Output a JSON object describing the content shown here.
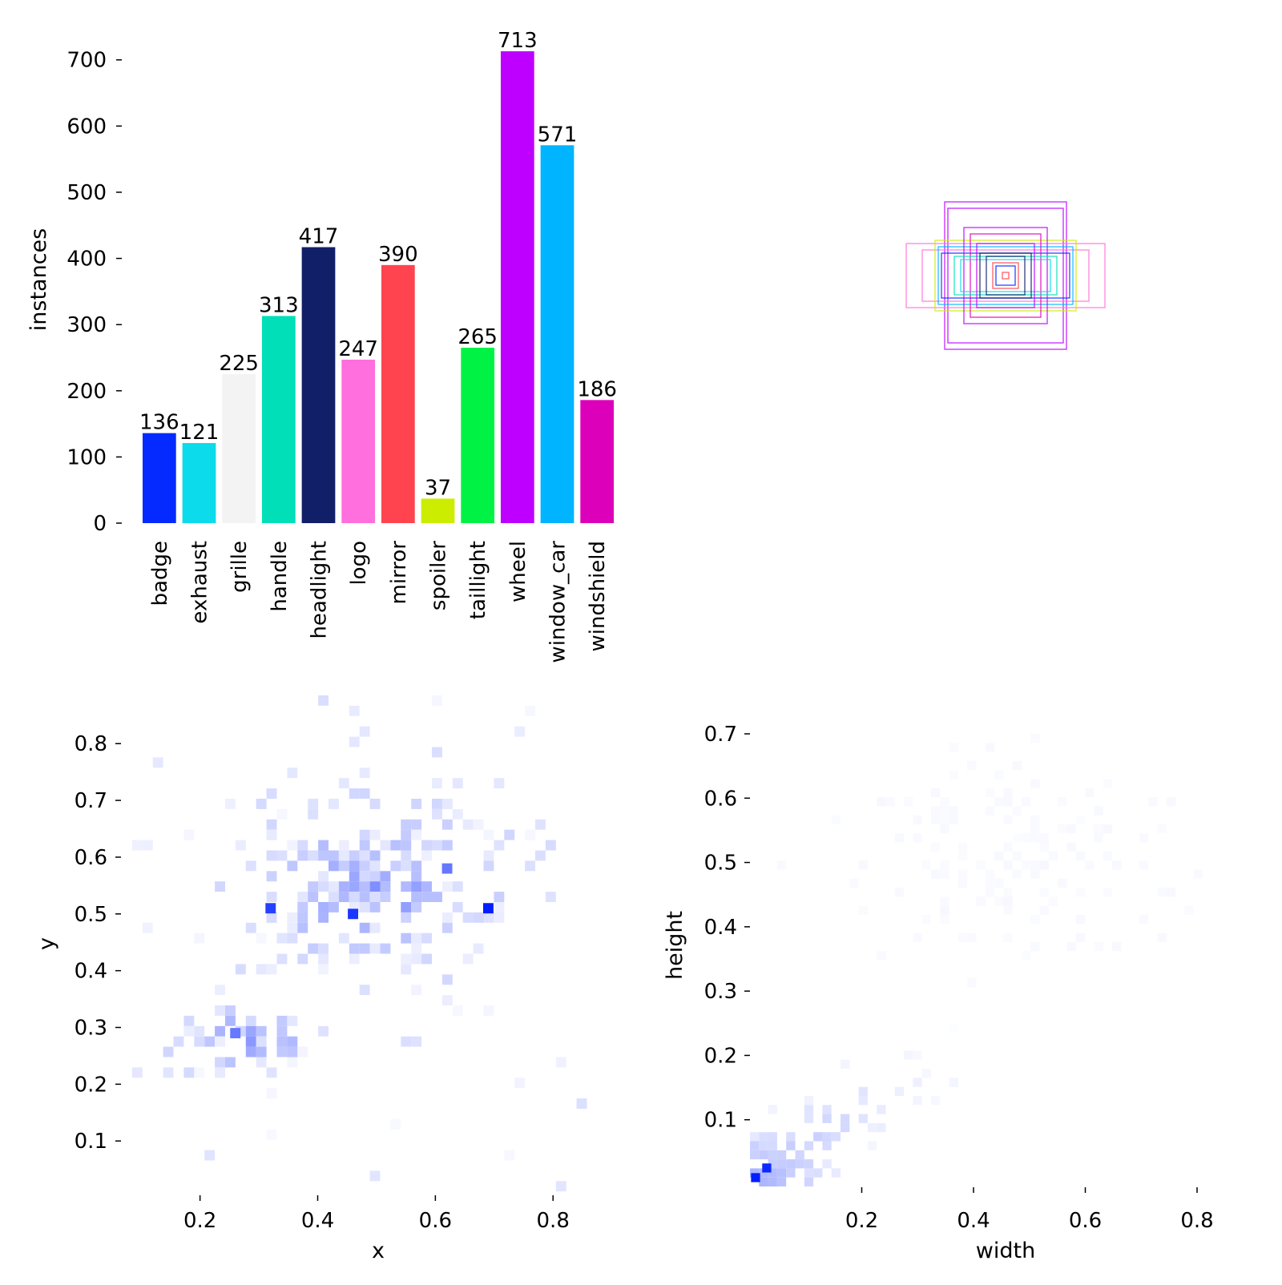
{
  "chart_data": [
    {
      "type": "bar",
      "ylabel": "instances",
      "ylim": [
        0,
        713
      ],
      "yticks": [
        0,
        100,
        200,
        300,
        400,
        500,
        600,
        700
      ],
      "categories": [
        "badge",
        "exhaust",
        "grille",
        "handle",
        "headlight",
        "logo",
        "mirror",
        "spoiler",
        "taillight",
        "wheel",
        "window_car",
        "windshield"
      ],
      "values": [
        136,
        121,
        225,
        313,
        417,
        247,
        390,
        37,
        265,
        713,
        571,
        186
      ],
      "colors": [
        "#042aff",
        "#0bdbeb",
        "#f3f3f3",
        "#00dfb7",
        "#111f68",
        "#ff6fdd",
        "#ff444f",
        "#cced00",
        "#00f344",
        "#bd00ff",
        "#00b4ff",
        "#dd00ba"
      ]
    },
    {
      "type": "other",
      "description": "overlaid centered bounding boxes",
      "boxes": [
        {
          "w": 0.19,
          "h": 0.23,
          "color": "#bd00ff"
        },
        {
          "w": 0.18,
          "h": 0.21,
          "color": "#bd00ff"
        },
        {
          "w": 0.31,
          "h": 0.1,
          "color": "#ff6fdd"
        },
        {
          "w": 0.26,
          "h": 0.08,
          "color": "#ff6fdd"
        },
        {
          "w": 0.22,
          "h": 0.11,
          "color": "#cced00"
        },
        {
          "w": 0.21,
          "h": 0.09,
          "color": "#00b4ff"
        },
        {
          "w": 0.2,
          "h": 0.07,
          "color": "#042aff"
        },
        {
          "w": 0.13,
          "h": 0.15,
          "color": "#bd00ff"
        },
        {
          "w": 0.11,
          "h": 0.13,
          "color": "#dd00ba"
        },
        {
          "w": 0.16,
          "h": 0.06,
          "color": "#00dfb7"
        },
        {
          "w": 0.14,
          "h": 0.05,
          "color": "#0bdbeb"
        },
        {
          "w": 0.09,
          "h": 0.1,
          "color": "#bd00ff"
        },
        {
          "w": 0.08,
          "h": 0.07,
          "color": "#111f68"
        },
        {
          "w": 0.06,
          "h": 0.06,
          "color": "#111f68"
        },
        {
          "w": 0.04,
          "h": 0.04,
          "color": "#ff444f"
        },
        {
          "w": 0.03,
          "h": 0.03,
          "color": "#042aff"
        },
        {
          "w": 0.01,
          "h": 0.01,
          "color": "#ff444f"
        }
      ]
    },
    {
      "type": "heatmap",
      "xlabel": "x",
      "ylabel": "y",
      "xticks": [
        0.2,
        0.4,
        0.6,
        0.8
      ],
      "yticks": [
        0.1,
        0.2,
        0.3,
        0.4,
        0.5,
        0.6,
        0.7,
        0.8
      ],
      "xlim": [
        0.067,
        0.94
      ],
      "ylim": [
        0.01,
        0.885
      ],
      "hotspots": [
        {
          "x": 0.32,
          "y": 0.51,
          "v": 0.85
        },
        {
          "x": 0.46,
          "y": 0.5,
          "v": 0.9
        },
        {
          "x": 0.69,
          "y": 0.51,
          "v": 1.0
        },
        {
          "x": 0.62,
          "y": 0.58,
          "v": 0.6
        },
        {
          "x": 0.26,
          "y": 0.29,
          "v": 0.6
        }
      ]
    },
    {
      "type": "heatmap",
      "xlabel": "width",
      "ylabel": "height",
      "xticks": [
        0.2,
        0.4,
        0.6,
        0.8
      ],
      "yticks": [
        0.1,
        0.2,
        0.3,
        0.4,
        0.5,
        0.6,
        0.7
      ],
      "xlim": [
        0.0,
        0.8
      ],
      "ylim": [
        0.0,
        0.7
      ],
      "hotspots": [
        {
          "x": 0.01,
          "y": 0.01,
          "v": 1.0
        },
        {
          "x": 0.03,
          "y": 0.025,
          "v": 0.95
        }
      ]
    }
  ]
}
